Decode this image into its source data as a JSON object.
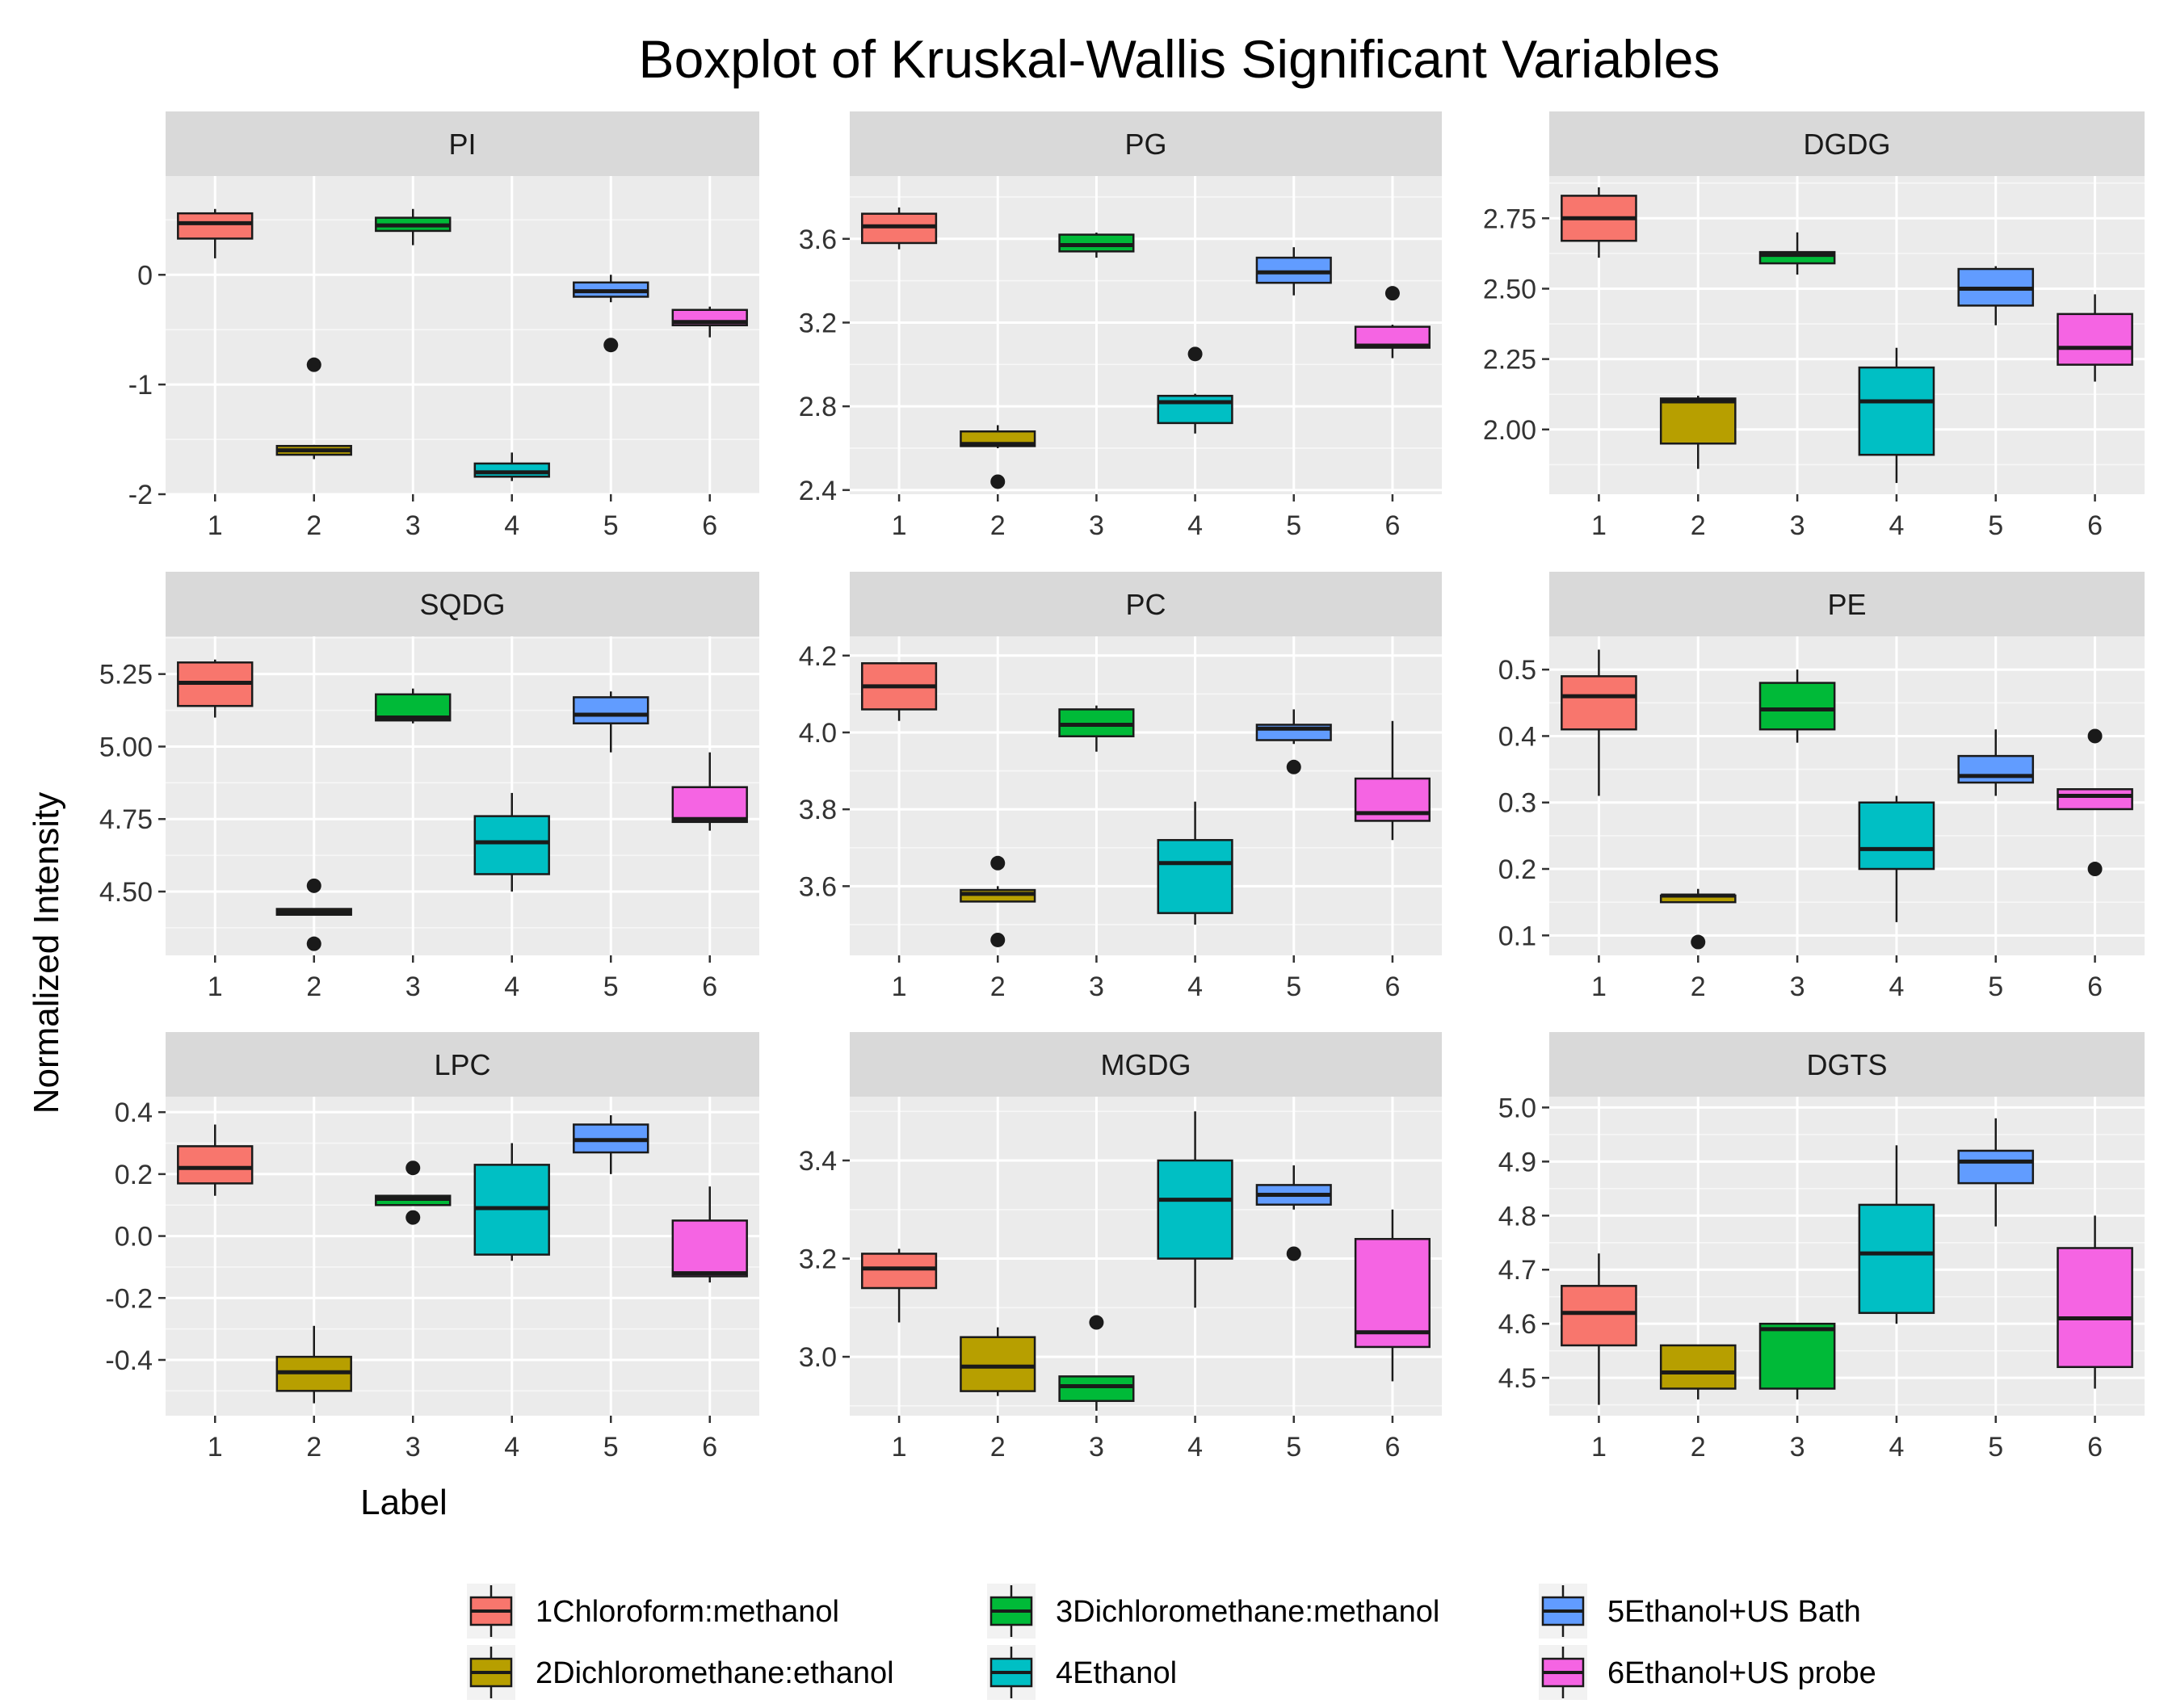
{
  "chart_data": {
    "type": "boxplot",
    "title": "Boxplot of Kruskal-Wallis Significant Variables",
    "xlabel": "Label",
    "ylabel": "Normalized Intensity",
    "categories": [
      "1",
      "2",
      "3",
      "4",
      "5",
      "6"
    ],
    "legend": [
      {
        "key": "1",
        "label": "1Chloroform:methanol",
        "color": "#F8766D"
      },
      {
        "key": "2",
        "label": "2Dichloromethane:ethanol",
        "color": "#B79F00"
      },
      {
        "key": "3",
        "label": "3Dichloromethane:methanol",
        "color": "#00BA38"
      },
      {
        "key": "4",
        "label": "4Ethanol",
        "color": "#00BFC4"
      },
      {
        "key": "5",
        "label": "5Ethanol+US Bath",
        "color": "#619CFF"
      },
      {
        "key": "6",
        "label": "6Ethanol+US probe",
        "color": "#F564E3"
      }
    ],
    "panels": [
      {
        "name": "PI",
        "ylim": [
          -2.0,
          0.9
        ],
        "yticks": [
          0,
          -1,
          -2
        ],
        "ytick_labels": [
          "0",
          "-1",
          "-2"
        ],
        "boxes": [
          {
            "min": 0.15,
            "q1": 0.33,
            "median": 0.47,
            "q3": 0.56,
            "max": 0.6,
            "outliers": []
          },
          {
            "min": -1.68,
            "q1": -1.64,
            "median": -1.6,
            "q3": -1.56,
            "max": -1.55,
            "outliers": [
              -0.82
            ]
          },
          {
            "min": 0.27,
            "q1": 0.4,
            "median": 0.45,
            "q3": 0.52,
            "max": 0.6,
            "outliers": []
          },
          {
            "min": -1.88,
            "q1": -1.84,
            "median": -1.8,
            "q3": -1.72,
            "max": -1.62,
            "outliers": []
          },
          {
            "min": -0.25,
            "q1": -0.2,
            "median": -0.15,
            "q3": -0.07,
            "max": 0.0,
            "outliers": [
              -0.64
            ]
          },
          {
            "min": -0.57,
            "q1": -0.46,
            "median": -0.43,
            "q3": -0.32,
            "max": -0.29,
            "outliers": []
          }
        ]
      },
      {
        "name": "PG",
        "ylim": [
          2.38,
          3.9
        ],
        "yticks": [
          3.6,
          3.2,
          2.8,
          2.4
        ],
        "ytick_labels": [
          "3.6",
          "3.2",
          "2.8",
          "2.4"
        ],
        "boxes": [
          {
            "min": 3.55,
            "q1": 3.58,
            "median": 3.66,
            "q3": 3.72,
            "max": 3.75,
            "outliers": []
          },
          {
            "min": 2.6,
            "q1": 2.61,
            "median": 2.62,
            "q3": 2.68,
            "max": 2.71,
            "outliers": [
              2.44
            ]
          },
          {
            "min": 3.51,
            "q1": 3.54,
            "median": 3.57,
            "q3": 3.62,
            "max": 3.63,
            "outliers": []
          },
          {
            "min": 2.67,
            "q1": 2.72,
            "median": 2.82,
            "q3": 2.85,
            "max": 2.86,
            "outliers": [
              3.05
            ]
          },
          {
            "min": 3.33,
            "q1": 3.39,
            "median": 3.44,
            "q3": 3.51,
            "max": 3.56,
            "outliers": []
          },
          {
            "min": 3.03,
            "q1": 3.08,
            "median": 3.09,
            "q3": 3.18,
            "max": 3.19,
            "outliers": [
              3.34
            ]
          }
        ]
      },
      {
        "name": "DGDG",
        "ylim": [
          1.77,
          2.9
        ],
        "yticks": [
          2.75,
          2.5,
          2.25,
          2.0
        ],
        "ytick_labels": [
          "2.75",
          "2.50",
          "2.25",
          "2.00"
        ],
        "boxes": [
          {
            "min": 2.61,
            "q1": 2.67,
            "median": 2.75,
            "q3": 2.83,
            "max": 2.86,
            "outliers": []
          },
          {
            "min": 1.86,
            "q1": 1.95,
            "median": 2.1,
            "q3": 2.11,
            "max": 2.12,
            "outliers": []
          },
          {
            "min": 2.55,
            "q1": 2.59,
            "median": 2.62,
            "q3": 2.63,
            "max": 2.7,
            "outliers": []
          },
          {
            "min": 1.81,
            "q1": 1.91,
            "median": 2.1,
            "q3": 2.22,
            "max": 2.29,
            "outliers": []
          },
          {
            "min": 2.37,
            "q1": 2.44,
            "median": 2.5,
            "q3": 2.57,
            "max": 2.58,
            "outliers": []
          },
          {
            "min": 2.17,
            "q1": 2.23,
            "median": 2.29,
            "q3": 2.41,
            "max": 2.48,
            "outliers": []
          }
        ]
      },
      {
        "name": "SQDG",
        "ylim": [
          4.28,
          5.38
        ],
        "yticks": [
          5.25,
          5.0,
          4.75,
          4.5
        ],
        "ytick_labels": [
          "5.25",
          "5.00",
          "4.75",
          "4.50"
        ],
        "boxes": [
          {
            "min": 5.1,
            "q1": 5.14,
            "median": 5.22,
            "q3": 5.29,
            "max": 5.3,
            "outliers": []
          },
          {
            "min": 4.42,
            "q1": 4.42,
            "median": 4.43,
            "q3": 4.44,
            "max": 4.44,
            "outliers": [
              4.52,
              4.32
            ]
          },
          {
            "min": 5.08,
            "q1": 5.09,
            "median": 5.1,
            "q3": 5.18,
            "max": 5.2,
            "outliers": []
          },
          {
            "min": 4.5,
            "q1": 4.56,
            "median": 4.67,
            "q3": 4.76,
            "max": 4.84,
            "outliers": []
          },
          {
            "min": 4.98,
            "q1": 5.08,
            "median": 5.11,
            "q3": 5.17,
            "max": 5.19,
            "outliers": []
          },
          {
            "min": 4.71,
            "q1": 4.74,
            "median": 4.75,
            "q3": 4.86,
            "max": 4.98,
            "outliers": []
          }
        ]
      },
      {
        "name": "PC",
        "ylim": [
          3.42,
          4.25
        ],
        "yticks": [
          4.2,
          4.0,
          3.8,
          3.6
        ],
        "ytick_labels": [
          "4.2",
          "4.0",
          "3.8",
          "3.6"
        ],
        "boxes": [
          {
            "min": 4.03,
            "q1": 4.06,
            "median": 4.12,
            "q3": 4.18,
            "max": 4.18,
            "outliers": []
          },
          {
            "min": 3.56,
            "q1": 3.56,
            "median": 3.58,
            "q3": 3.59,
            "max": 3.6,
            "outliers": [
              3.66,
              3.46
            ]
          },
          {
            "min": 3.95,
            "q1": 3.99,
            "median": 4.02,
            "q3": 4.06,
            "max": 4.07,
            "outliers": []
          },
          {
            "min": 3.5,
            "q1": 3.53,
            "median": 3.66,
            "q3": 3.72,
            "max": 3.82,
            "outliers": []
          },
          {
            "min": 3.97,
            "q1": 3.98,
            "median": 4.01,
            "q3": 4.02,
            "max": 4.06,
            "outliers": [
              3.91
            ]
          },
          {
            "min": 3.72,
            "q1": 3.77,
            "median": 3.79,
            "q3": 3.88,
            "max": 4.03,
            "outliers": []
          }
        ]
      },
      {
        "name": "PE",
        "ylim": [
          0.07,
          0.55
        ],
        "yticks": [
          0.5,
          0.4,
          0.3,
          0.2,
          0.1
        ],
        "ytick_labels": [
          "0.5",
          "0.4",
          "0.3",
          "0.2",
          "0.1"
        ],
        "boxes": [
          {
            "min": 0.31,
            "q1": 0.41,
            "median": 0.46,
            "q3": 0.49,
            "max": 0.53,
            "outliers": []
          },
          {
            "min": 0.15,
            "q1": 0.15,
            "median": 0.16,
            "q3": 0.16,
            "max": 0.17,
            "outliers": [
              0.09
            ]
          },
          {
            "min": 0.39,
            "q1": 0.41,
            "median": 0.44,
            "q3": 0.48,
            "max": 0.5,
            "outliers": []
          },
          {
            "min": 0.12,
            "q1": 0.2,
            "median": 0.23,
            "q3": 0.3,
            "max": 0.31,
            "outliers": []
          },
          {
            "min": 0.31,
            "q1": 0.33,
            "median": 0.34,
            "q3": 0.37,
            "max": 0.41,
            "outliers": []
          },
          {
            "min": 0.29,
            "q1": 0.29,
            "median": 0.31,
            "q3": 0.32,
            "max": 0.32,
            "outliers": [
              0.4,
              0.2
            ]
          }
        ]
      },
      {
        "name": "LPC",
        "ylim": [
          -0.58,
          0.45
        ],
        "yticks": [
          0.4,
          0.2,
          0.0,
          -0.2,
          -0.4
        ],
        "ytick_labels": [
          "0.4",
          "0.2",
          "0.0",
          "-0.2",
          "-0.4"
        ],
        "boxes": [
          {
            "min": 0.13,
            "q1": 0.17,
            "median": 0.22,
            "q3": 0.29,
            "max": 0.36,
            "outliers": []
          },
          {
            "min": -0.54,
            "q1": -0.5,
            "median": -0.44,
            "q3": -0.39,
            "max": -0.29,
            "outliers": []
          },
          {
            "min": 0.1,
            "q1": 0.1,
            "median": 0.12,
            "q3": 0.13,
            "max": 0.13,
            "outliers": [
              0.22,
              0.06
            ]
          },
          {
            "min": -0.08,
            "q1": -0.06,
            "median": 0.09,
            "q3": 0.23,
            "max": 0.3,
            "outliers": []
          },
          {
            "min": 0.2,
            "q1": 0.27,
            "median": 0.31,
            "q3": 0.36,
            "max": 0.39,
            "outliers": []
          },
          {
            "min": -0.15,
            "q1": -0.13,
            "median": -0.12,
            "q3": 0.05,
            "max": 0.16,
            "outliers": []
          }
        ]
      },
      {
        "name": "MGDG",
        "ylim": [
          2.88,
          3.53
        ],
        "yticks": [
          3.4,
          3.2,
          3.0
        ],
        "ytick_labels": [
          "3.4",
          "3.2",
          "3.0"
        ],
        "boxes": [
          {
            "min": 3.07,
            "q1": 3.14,
            "median": 3.18,
            "q3": 3.21,
            "max": 3.22,
            "outliers": []
          },
          {
            "min": 2.92,
            "q1": 2.93,
            "median": 2.98,
            "q3": 3.04,
            "max": 3.06,
            "outliers": []
          },
          {
            "min": 2.89,
            "q1": 2.91,
            "median": 2.94,
            "q3": 2.96,
            "max": 2.96,
            "outliers": [
              3.07
            ]
          },
          {
            "min": 3.1,
            "q1": 3.2,
            "median": 3.32,
            "q3": 3.4,
            "max": 3.5,
            "outliers": []
          },
          {
            "min": 3.3,
            "q1": 3.31,
            "median": 3.33,
            "q3": 3.35,
            "max": 3.39,
            "outliers": [
              3.21
            ]
          },
          {
            "min": 2.95,
            "q1": 3.02,
            "median": 3.05,
            "q3": 3.24,
            "max": 3.3,
            "outliers": []
          }
        ]
      },
      {
        "name": "DGTS",
        "ylim": [
          4.43,
          5.02
        ],
        "yticks": [
          5.0,
          4.9,
          4.8,
          4.7,
          4.6,
          4.5
        ],
        "ytick_labels": [
          "5.0",
          "4.9",
          "4.8",
          "4.7",
          "4.6",
          "4.5"
        ],
        "boxes": [
          {
            "min": 4.45,
            "q1": 4.56,
            "median": 4.62,
            "q3": 4.67,
            "max": 4.73,
            "outliers": []
          },
          {
            "min": 4.46,
            "q1": 4.48,
            "median": 4.51,
            "q3": 4.56,
            "max": 4.56,
            "outliers": []
          },
          {
            "min": 4.46,
            "q1": 4.48,
            "median": 4.59,
            "q3": 4.6,
            "max": 4.6,
            "outliers": []
          },
          {
            "min": 4.6,
            "q1": 4.62,
            "median": 4.73,
            "q3": 4.82,
            "max": 4.93,
            "outliers": []
          },
          {
            "min": 4.78,
            "q1": 4.86,
            "median": 4.9,
            "q3": 4.92,
            "max": 4.98,
            "outliers": []
          },
          {
            "min": 4.48,
            "q1": 4.52,
            "median": 4.61,
            "q3": 4.74,
            "max": 4.8,
            "outliers": []
          }
        ]
      }
    ]
  }
}
